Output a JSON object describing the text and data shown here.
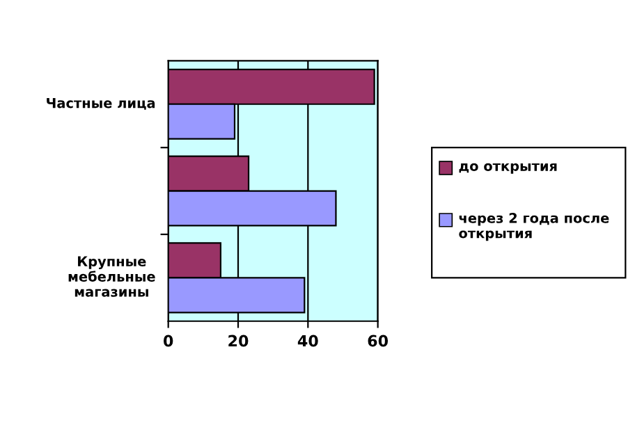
{
  "chart_data": {
    "type": "bar",
    "orientation": "horizontal",
    "categories": [
      "Частные лица",
      null,
      "Крупные мебельные магазины"
    ],
    "series": [
      {
        "name": "до открытия",
        "color": "#993366",
        "values": [
          59,
          23,
          15
        ]
      },
      {
        "name": "через 2 года после открытия",
        "color": "#9999ff",
        "values": [
          19,
          48,
          39
        ]
      }
    ],
    "xlim": [
      0,
      60
    ],
    "xticks": [
      0,
      20,
      40,
      60
    ],
    "grid": "x",
    "legend": "right"
  }
}
